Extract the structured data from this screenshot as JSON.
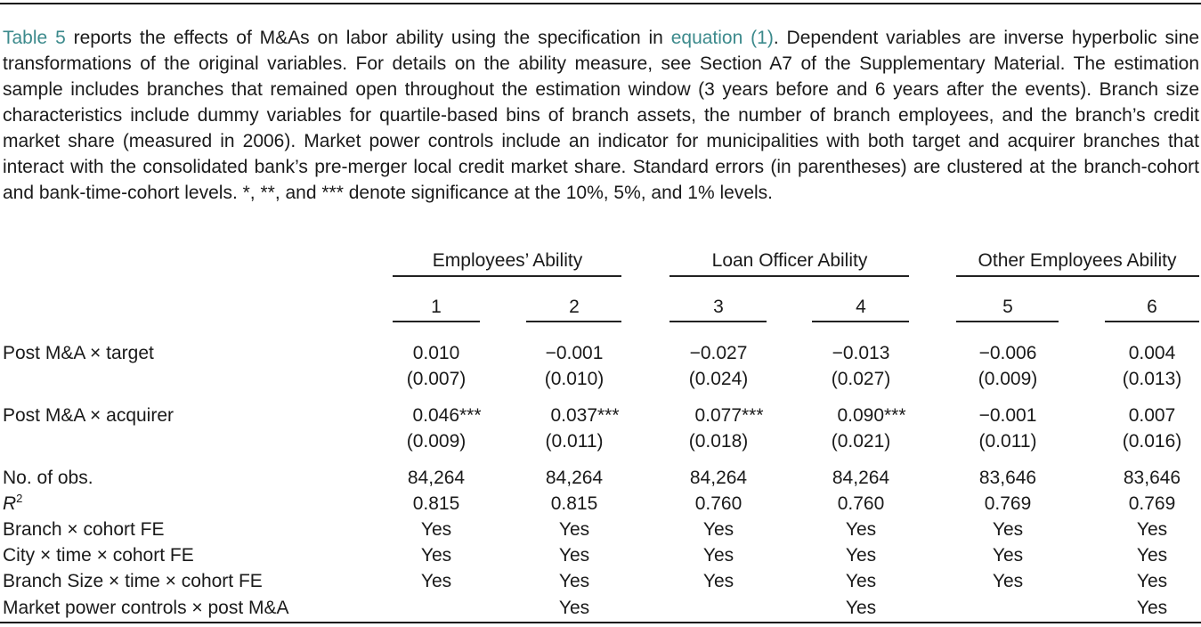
{
  "caption": {
    "lead_link": "Table 5",
    "part1": " reports the effects of M&As on labor ability using the specification in ",
    "eq_link": "equation (1)",
    "part2": ". Dependent variables are inverse hyperbolic sine transformations of the original variables. For details on the ability measure, see Section A7 of the Supplementary Material. The estimation sample includes branches that remained open throughout the estimation window (3 years before and 6 years after the events). Branch size characteristics include dummy variables for quartile-based bins of branch assets, the number of branch employees, and the branch’s credit market share (measured in 2006). Market power controls include an indicator for municipalities with both target and acquirer branches that interact with the consolidated bank’s pre-merger local credit market share. Standard errors (in parentheses) are clustered at the branch-cohort and bank-time-cohort levels. *, **, and *** denote significance at the 10%, 5%, and 1% levels."
  },
  "groups": [
    "Employees’ Ability",
    "Loan Officer Ability",
    "Other Employees Ability"
  ],
  "columns": [
    "1",
    "2",
    "3",
    "4",
    "5",
    "6"
  ],
  "rows": {
    "target": {
      "label": "Post M&A × target",
      "coef": [
        "0.010",
        "−0.001",
        "−0.027",
        "−0.013",
        "−0.006",
        "0.004"
      ],
      "se": [
        "(0.007)",
        "(0.010)",
        "(0.024)",
        "(0.027)",
        "(0.009)",
        "(0.013)"
      ]
    },
    "acquirer": {
      "label": "Post M&A × acquirer",
      "coef": [
        "0.046***",
        "0.037***",
        "0.077***",
        "0.090***",
        "−0.001",
        "0.007"
      ],
      "se": [
        "(0.009)",
        "(0.011)",
        "(0.018)",
        "(0.021)",
        "(0.011)",
        "(0.016)"
      ]
    },
    "obs": {
      "label": "No. of obs.",
      "values": [
        "84,264",
        "84,264",
        "84,264",
        "84,264",
        "83,646",
        "83,646"
      ]
    },
    "r2": {
      "label_r": "R",
      "label_sup": "2",
      "values": [
        "0.815",
        "0.815",
        "0.760",
        "0.760",
        "0.769",
        "0.769"
      ]
    },
    "branch_fe": {
      "label": "Branch × cohort FE",
      "values": [
        "Yes",
        "Yes",
        "Yes",
        "Yes",
        "Yes",
        "Yes"
      ]
    },
    "city_fe": {
      "label": "City × time × cohort FE",
      "values": [
        "Yes",
        "Yes",
        "Yes",
        "Yes",
        "Yes",
        "Yes"
      ]
    },
    "size_fe": {
      "label": "Branch Size × time × cohort FE",
      "values": [
        "Yes",
        "Yes",
        "Yes",
        "Yes",
        "Yes",
        "Yes"
      ]
    },
    "market": {
      "label": "Market power controls × post M&A",
      "values": [
        "",
        "Yes",
        "",
        "Yes",
        "",
        "Yes"
      ]
    }
  },
  "colors": {
    "link": "#3c8a8c",
    "text": "#1a1a1a"
  }
}
